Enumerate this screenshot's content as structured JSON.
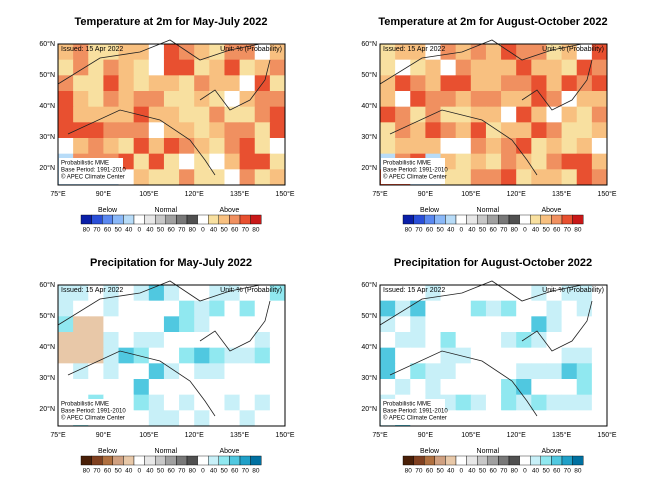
{
  "panels": [
    {
      "title": "Temperature at 2m for May-July 2022",
      "kind": "temperature",
      "issued": "Issued: 15 Apr 2022",
      "unit": "Unit: % (Probability)",
      "note": [
        "Probabilistic MME",
        "Base Period: 1991-2010",
        "© APEC Climate Center"
      ],
      "lat_labels": [
        "60°N",
        "50°N",
        "40°N",
        "30°N",
        "20°N"
      ],
      "lon_labels": [
        "75°E",
        "90°E",
        "105°E",
        "120°E",
        "135°E",
        "150°E"
      ],
      "legend": {
        "groups": [
          "Below",
          "Normal",
          "Above"
        ],
        "labels": [
          80,
          70,
          60,
          50,
          40,
          0,
          40,
          50,
          60,
          70,
          80,
          0,
          40,
          50,
          60,
          70,
          80
        ]
      }
    },
    {
      "title": "Temperature at 2m for August-October 2022",
      "kind": "temperature",
      "issued": "Issued: 15 Apr 2022",
      "unit": "Unit: % (Probability)",
      "note": [
        "Probabilistic MME",
        "Base Period: 1991-2010",
        "© APEC Climate Center"
      ],
      "lat_labels": [
        "60°N",
        "50°N",
        "40°N",
        "30°N",
        "20°N"
      ],
      "lon_labels": [
        "75°E",
        "90°E",
        "105°E",
        "120°E",
        "135°E",
        "150°E"
      ],
      "legend": {
        "groups": [
          "Below",
          "Normal",
          "Above"
        ],
        "labels": [
          80,
          70,
          60,
          50,
          40,
          0,
          40,
          50,
          60,
          70,
          80,
          0,
          40,
          50,
          60,
          70,
          80
        ]
      }
    },
    {
      "title": "Precipitation for May-July 2022",
      "kind": "precipitation",
      "issued": "Issued: 15 Apr 2022",
      "unit": "Unit: % (Probability)",
      "note": [
        "Probabilistic MME",
        "Base Period: 1991-2010",
        "© APEC Climate Center"
      ],
      "lat_labels": [
        "60°N",
        "50°N",
        "40°N",
        "30°N",
        "20°N"
      ],
      "lon_labels": [
        "75°E",
        "90°E",
        "105°E",
        "120°E",
        "135°E",
        "150°E"
      ],
      "legend": {
        "groups": [
          "Below",
          "Normal",
          "Above"
        ],
        "labels": [
          80,
          70,
          60,
          50,
          40,
          0,
          40,
          50,
          60,
          70,
          80,
          0,
          40,
          50,
          60,
          70,
          80
        ]
      }
    },
    {
      "title": "Precipitation for August-October 2022",
      "kind": "precipitation",
      "issued": "Issued: 15 Apr 2022",
      "unit": "Unit: % (Probability)",
      "note": [
        "Probabilistic MME",
        "Base Period: 1991-2010",
        "© APEC Climate Center"
      ],
      "lat_labels": [
        "60°N",
        "50°N",
        "40°N",
        "30°N",
        "20°N"
      ],
      "lon_labels": [
        "75°E",
        "90°E",
        "105°E",
        "120°E",
        "135°E",
        "150°E"
      ],
      "legend": {
        "groups": [
          "Below",
          "Normal",
          "Above"
        ],
        "labels": [
          80,
          70,
          60,
          50,
          40,
          0,
          40,
          50,
          60,
          70,
          80,
          0,
          40,
          50,
          60,
          70,
          80
        ]
      }
    }
  ]
}
